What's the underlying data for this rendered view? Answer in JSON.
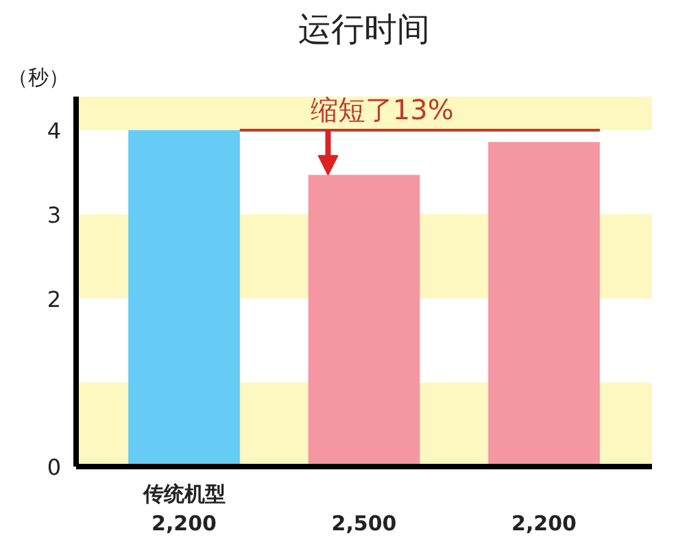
{
  "chart_data": {
    "type": "bar",
    "title": "运行时间",
    "ylabel": "（秒）",
    "categories": [
      "传统机型\n2,200",
      "\n2,500",
      "\n2,200"
    ],
    "values": [
      4.0,
      3.47,
      3.86
    ],
    "colors": [
      "#66ccf5",
      "#f497a2",
      "#f497a2"
    ],
    "ylim": [
      0,
      4.4
    ],
    "yticks": [
      0,
      2,
      3,
      4
    ],
    "grid": false,
    "ref_lines": [
      {
        "axis": "y",
        "value": 4,
        "label": "缩短了13%",
        "color": "#c0392b"
      }
    ],
    "bands": [
      {
        "axis": "y",
        "from": 4,
        "to": 4.4,
        "color": "#fdf7c0"
      },
      {
        "axis": "y",
        "from": 2,
        "to": 3,
        "color": "#fdf7c0"
      },
      {
        "axis": "y",
        "from": 0,
        "to": 1,
        "color": "#fdf7c0"
      }
    ]
  }
}
